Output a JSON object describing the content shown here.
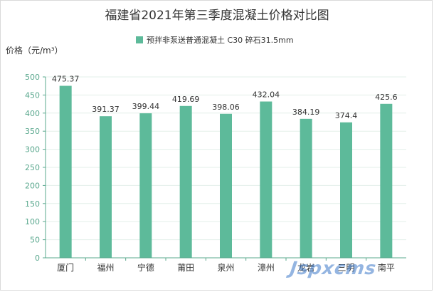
{
  "chart_data": {
    "type": "bar",
    "title": "福建省2021年第三季度混凝土价格对比图",
    "ylabel": "价格（元/m³）",
    "xlabel": "",
    "categories": [
      "厦门",
      "福州",
      "宁德",
      "莆田",
      "泉州",
      "漳州",
      "龙岩",
      "三明",
      "南平"
    ],
    "series": [
      {
        "name": "预拌非泵送普通混凝土 C30 碎石31.5mm",
        "values": [
          475.37,
          391.37,
          399.44,
          419.69,
          398.06,
          432.04,
          384.19,
          374.4,
          425.6
        ],
        "labels": [
          "475.37",
          "391.37",
          "399.44",
          "419.69",
          "398.06",
          "432.04",
          "384.19",
          "374.4",
          "425.6"
        ]
      }
    ],
    "ylim": [
      0,
      500
    ],
    "yticks": [
      0,
      50,
      100,
      150,
      200,
      250,
      300,
      350,
      400,
      450,
      500
    ],
    "grid": true,
    "legend_position": "top-center",
    "colors": {
      "bar": "#5dba9a",
      "axis": "#5aa88e",
      "grid": "#e3efe9"
    }
  },
  "watermark": "Jspxcms"
}
